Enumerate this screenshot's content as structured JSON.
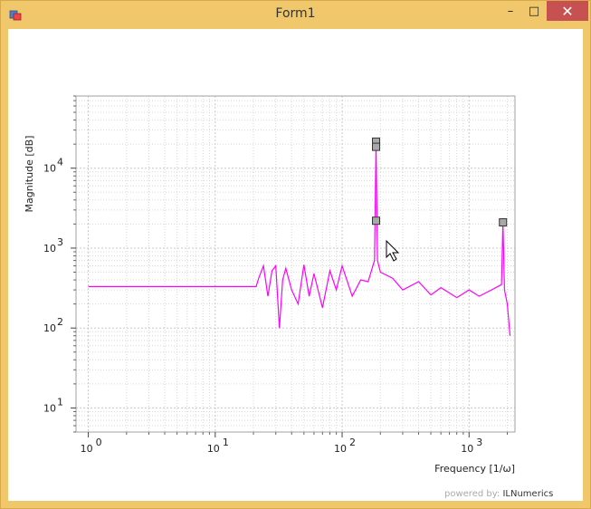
{
  "window": {
    "title": "Form1"
  },
  "controls": {
    "minimize": "–",
    "maximize": "□",
    "close": "✕"
  },
  "footer": {
    "prefix": "powered by:",
    "brand": "ILNumerics"
  },
  "chart_data": {
    "type": "line",
    "title": "",
    "xlabel": "Frequency [1/ω]",
    "ylabel": "Magnitude [dB]",
    "xscale": "log",
    "yscale": "log",
    "xlim": [
      0.8,
      2300
    ],
    "ylim": [
      5,
      80000
    ],
    "x_ticks": [
      1,
      10,
      100,
      1000
    ],
    "x_tick_labels": [
      "10",
      "10",
      "10",
      "10"
    ],
    "x_tick_exponents": [
      "0",
      "1",
      "2",
      "3"
    ],
    "y_ticks": [
      10,
      100,
      1000,
      10000
    ],
    "y_tick_labels": [
      "10",
      "10",
      "10",
      "10"
    ],
    "y_tick_exponents": [
      "1",
      "2",
      "3",
      "4"
    ],
    "grid": true,
    "series": [
      {
        "color": "#ff00ff",
        "x": [
          1,
          21,
          22,
          24,
          26,
          28,
          30,
          32,
          34,
          36,
          40,
          45,
          50,
          55,
          60,
          70,
          80,
          90,
          100,
          120,
          140,
          160,
          180,
          185,
          190,
          200,
          250,
          300,
          400,
          500,
          600,
          800,
          1000,
          1200,
          1500,
          1800,
          1850,
          1900,
          2000,
          2100
        ],
        "y": [
          330,
          330,
          420,
          600,
          250,
          520,
          600,
          100,
          400,
          560,
          300,
          200,
          620,
          250,
          480,
          180,
          520,
          300,
          600,
          250,
          400,
          380,
          700,
          20000,
          700,
          500,
          420,
          300,
          380,
          260,
          320,
          240,
          300,
          250,
          300,
          350,
          2100,
          300,
          200,
          80
        ]
      }
    ],
    "markers": [
      {
        "x": 185,
        "y": 21500,
        "label": ""
      },
      {
        "x": 185,
        "y": 18500,
        "label": ""
      },
      {
        "x": 185,
        "y": 2200,
        "label": ""
      },
      {
        "x": 1850,
        "y": 2100,
        "label": ""
      }
    ]
  }
}
